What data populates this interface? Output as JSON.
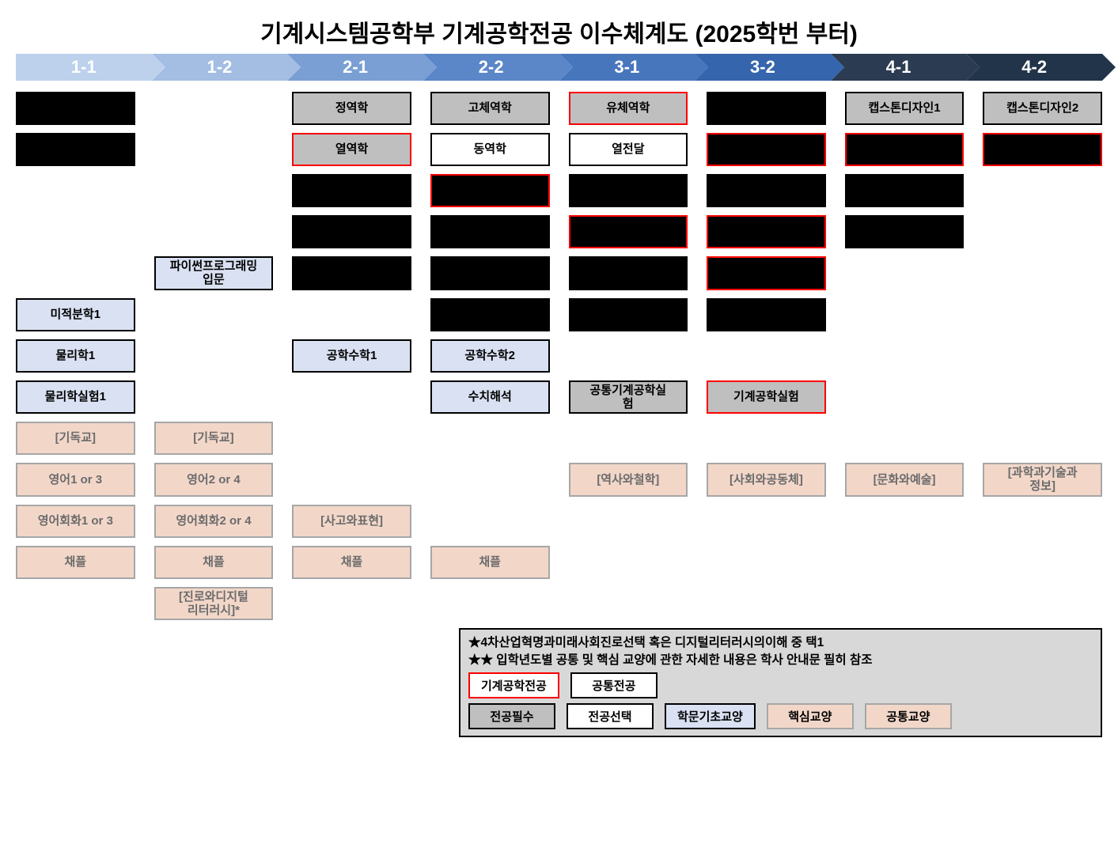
{
  "title": {
    "text": "기계시스템공학부 기계공학전공 이수체계도 (2025학번 부터)",
    "fontsize": 30
  },
  "colors": {
    "black": "#000000",
    "gray_fill": "#bfbfbf",
    "lightblue_fill": "#d9e1f2",
    "peach_fill": "#f2d7c9",
    "white": "#ffffff",
    "red": "#ff0000",
    "border_gray": "#a6a6a6",
    "note_bg": "#d8d8d8"
  },
  "semesters": [
    {
      "label": "1-1",
      "bg": "#bdd1ed"
    },
    {
      "label": "1-2",
      "bg": "#a3bde3"
    },
    {
      "label": "2-1",
      "bg": "#7a9fd4"
    },
    {
      "label": "2-2",
      "bg": "#5b86c8"
    },
    {
      "label": "3-1",
      "bg": "#4776bd"
    },
    {
      "label": "3-2",
      "bg": "#3565ac"
    },
    {
      "label": "4-1",
      "bg": "#2b3b52"
    },
    {
      "label": "4-2",
      "bg": "#22344a"
    }
  ],
  "rows": [
    [
      {
        "style": "black"
      },
      null,
      {
        "text": "정역학",
        "style": "gray"
      },
      {
        "text": "고체역학",
        "style": "gray"
      },
      {
        "text": "유체역학",
        "style": "gray_red"
      },
      {
        "style": "black"
      },
      {
        "text": "캡스톤디자인1",
        "style": "gray"
      },
      {
        "text": "캡스톤디자인2",
        "style": "gray"
      }
    ],
    [
      {
        "style": "black"
      },
      null,
      {
        "text": "열역학",
        "style": "gray_red"
      },
      {
        "text": "동역학",
        "style": "white"
      },
      {
        "text": "열전달",
        "style": "white"
      },
      {
        "style": "black_red"
      },
      {
        "style": "black_red"
      },
      {
        "style": "black_red"
      }
    ],
    [
      null,
      null,
      {
        "style": "black"
      },
      {
        "style": "black_red"
      },
      {
        "style": "black"
      },
      {
        "style": "black"
      },
      {
        "style": "black"
      },
      null
    ],
    [
      null,
      null,
      {
        "style": "black"
      },
      {
        "style": "black"
      },
      {
        "style": "black_red"
      },
      {
        "style": "black_red"
      },
      {
        "style": "black"
      },
      null
    ],
    [
      null,
      {
        "text": "파이썬프로그래밍\n입문",
        "style": "blue"
      },
      {
        "style": "black"
      },
      {
        "style": "black"
      },
      {
        "style": "black"
      },
      {
        "style": "black_red"
      },
      null,
      null
    ],
    [
      {
        "text": "미적분학1",
        "style": "blue"
      },
      null,
      null,
      {
        "style": "black"
      },
      {
        "style": "black"
      },
      {
        "style": "black"
      },
      null,
      null
    ],
    [
      {
        "text": "물리학1",
        "style": "blue"
      },
      null,
      {
        "text": "공학수학1",
        "style": "blue"
      },
      {
        "text": "공학수학2",
        "style": "blue"
      },
      null,
      null,
      null,
      null
    ],
    [
      {
        "text": "물리학실험1",
        "style": "blue"
      },
      null,
      null,
      {
        "text": "수치해석",
        "style": "blue"
      },
      {
        "text": "공통기계공학실\n험",
        "style": "gray"
      },
      {
        "text": "기계공학실험",
        "style": "gray_red"
      },
      null,
      null
    ],
    [
      {
        "text": "[기독교]",
        "style": "peach"
      },
      {
        "text": "[기독교]",
        "style": "peach"
      },
      null,
      null,
      null,
      null,
      null,
      null
    ],
    [
      {
        "text": "영어1 or 3",
        "style": "peach"
      },
      {
        "text": "영어2 or 4",
        "style": "peach"
      },
      null,
      null,
      {
        "text": "[역사와철학]",
        "style": "peach"
      },
      {
        "text": "[사회와공동체]",
        "style": "peach"
      },
      {
        "text": "[문화와예술]",
        "style": "peach"
      },
      {
        "text": "[과학과기술과\n정보]",
        "style": "peach"
      }
    ],
    [
      {
        "text": "영어회화1 or 3",
        "style": "peach"
      },
      {
        "text": "영어회화2 or 4",
        "style": "peach"
      },
      {
        "text": "[사고와표현]",
        "style": "peach"
      },
      null,
      null,
      null,
      null,
      null
    ],
    [
      {
        "text": "채플",
        "style": "peach"
      },
      {
        "text": "채플",
        "style": "peach"
      },
      {
        "text": "채플",
        "style": "peach"
      },
      {
        "text": "채플",
        "style": "peach"
      },
      null,
      null,
      null,
      null
    ],
    [
      null,
      {
        "text": "[진로와디지털\n리터러시]*",
        "style": "peach"
      },
      null,
      null,
      null,
      null,
      null,
      null
    ]
  ],
  "styles": {
    "black": {
      "bg": "#000000",
      "border": "#000000",
      "border_w": 2,
      "color": "#ffffff"
    },
    "black_red": {
      "bg": "#000000",
      "border": "#ff0000",
      "border_w": 2.5,
      "color": "#ffffff"
    },
    "gray": {
      "bg": "#bfbfbf",
      "border": "#000000",
      "border_w": 2,
      "color": "#000000"
    },
    "gray_red": {
      "bg": "#bfbfbf",
      "border": "#ff0000",
      "border_w": 2.5,
      "color": "#000000"
    },
    "white": {
      "bg": "#ffffff",
      "border": "#000000",
      "border_w": 2,
      "color": "#000000"
    },
    "blue": {
      "bg": "#d9e1f2",
      "border": "#000000",
      "border_w": 2,
      "color": "#000000"
    },
    "peach": {
      "bg": "#f2d7c9",
      "border": "#a6a6a6",
      "border_w": 2,
      "color": "#6b6b6b"
    }
  },
  "notes": {
    "line1": "★4차산업혁명과미래사회진로선택 혹은 디지털리터러시의이해 중 택1",
    "line2": "★★ 입학년도별 공통 및 핵심 교양에 관한 자세한 내용은 학사 안내문 필히 참조"
  },
  "legend": {
    "row1": [
      {
        "text": "기계공학전공",
        "bg": "#ffffff",
        "border": "#ff0000"
      },
      {
        "text": "공통전공",
        "bg": "#ffffff",
        "border": "#000000"
      }
    ],
    "row2": [
      {
        "text": "전공필수",
        "bg": "#bfbfbf",
        "border": "#000000"
      },
      {
        "text": "전공선택",
        "bg": "#ffffff",
        "border": "#000000"
      },
      {
        "text": "학문기초교양",
        "bg": "#d9e1f2",
        "border": "#000000"
      },
      {
        "text": "핵심교양",
        "bg": "#f2d7c9",
        "border": "#a6a6a6"
      },
      {
        "text": "공통교양",
        "bg": "#f2d7c9",
        "border": "#a6a6a6"
      }
    ]
  }
}
